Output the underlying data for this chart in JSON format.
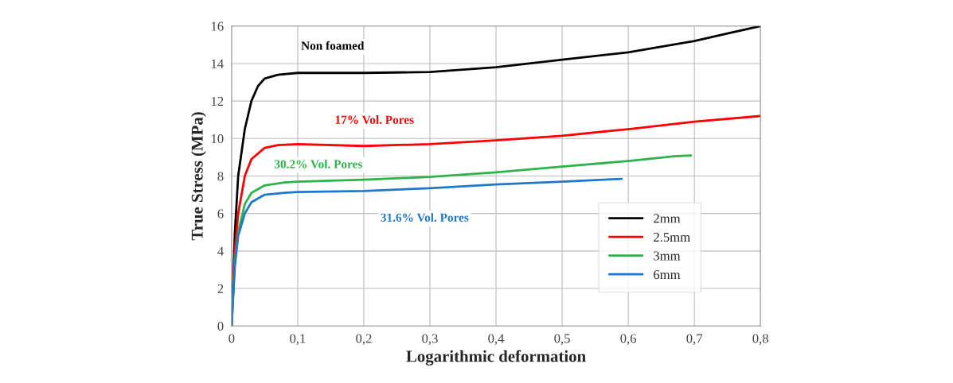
{
  "chart_data": {
    "type": "line",
    "xlabel": "Logarithmic deformation",
    "ylabel": "True Stress (MPa)",
    "xlim": [
      0,
      0.8
    ],
    "ylim": [
      0,
      16
    ],
    "xticks": [
      0,
      {
        "value": 0.1,
        "label": "0,1"
      },
      {
        "value": 0.2,
        "label": "0,2"
      },
      {
        "value": 0.3,
        "label": "0,3"
      },
      {
        "value": 0.4,
        "label": "0,4"
      },
      {
        "value": 0.5,
        "label": "0,5"
      },
      {
        "value": 0.6,
        "label": "0,6"
      },
      {
        "value": 0.7,
        "label": "0,7"
      },
      {
        "value": 0.8,
        "label": "0,8"
      }
    ],
    "yticks": [
      0,
      2,
      4,
      6,
      8,
      10,
      12,
      14,
      16
    ],
    "grid": true,
    "legend": "bottom right",
    "marker": "none",
    "line_style": "solid",
    "series": [
      {
        "name": "2mm",
        "color": "#000000",
        "x": [
          0,
          0.005,
          0.01,
          0.02,
          0.03,
          0.04,
          0.05,
          0.07,
          0.1,
          0.2,
          0.3,
          0.4,
          0.5,
          0.6,
          0.7,
          0.75,
          0.8
        ],
        "values": [
          0,
          5,
          8,
          10.5,
          12,
          12.8,
          13.2,
          13.4,
          13.5,
          13.5,
          13.55,
          13.8,
          14.2,
          14.6,
          15.2,
          15.6,
          16
        ]
      },
      {
        "name": "2.5mm",
        "color": "#ff0000",
        "x": [
          0,
          0.005,
          0.01,
          0.02,
          0.03,
          0.05,
          0.07,
          0.1,
          0.2,
          0.3,
          0.4,
          0.5,
          0.6,
          0.7,
          0.8
        ],
        "values": [
          0,
          4,
          6,
          8,
          8.9,
          9.5,
          9.65,
          9.7,
          9.6,
          9.7,
          9.9,
          10.15,
          10.5,
          10.9,
          11.2
        ]
      },
      {
        "name": "3mm",
        "color": "#2db34a",
        "x": [
          0,
          0.005,
          0.01,
          0.02,
          0.03,
          0.05,
          0.08,
          0.1,
          0.2,
          0.3,
          0.4,
          0.5,
          0.6,
          0.67,
          0.695
        ],
        "values": [
          0,
          3.5,
          5,
          6.5,
          7.1,
          7.5,
          7.65,
          7.7,
          7.8,
          7.95,
          8.2,
          8.5,
          8.8,
          9.05,
          9.1
        ]
      },
      {
        "name": "6mm",
        "color": "#1f78c8",
        "x": [
          0,
          0.005,
          0.01,
          0.02,
          0.03,
          0.05,
          0.08,
          0.1,
          0.2,
          0.3,
          0.4,
          0.5,
          0.59
        ],
        "values": [
          0,
          3.2,
          4.8,
          6,
          6.6,
          7,
          7.1,
          7.15,
          7.2,
          7.35,
          7.55,
          7.7,
          7.85
        ]
      }
    ],
    "annotations": [
      "Non foamed",
      "17% Vol. Pores",
      "30.2% Vol. Pores",
      "31.6% Vol. Pores"
    ]
  }
}
